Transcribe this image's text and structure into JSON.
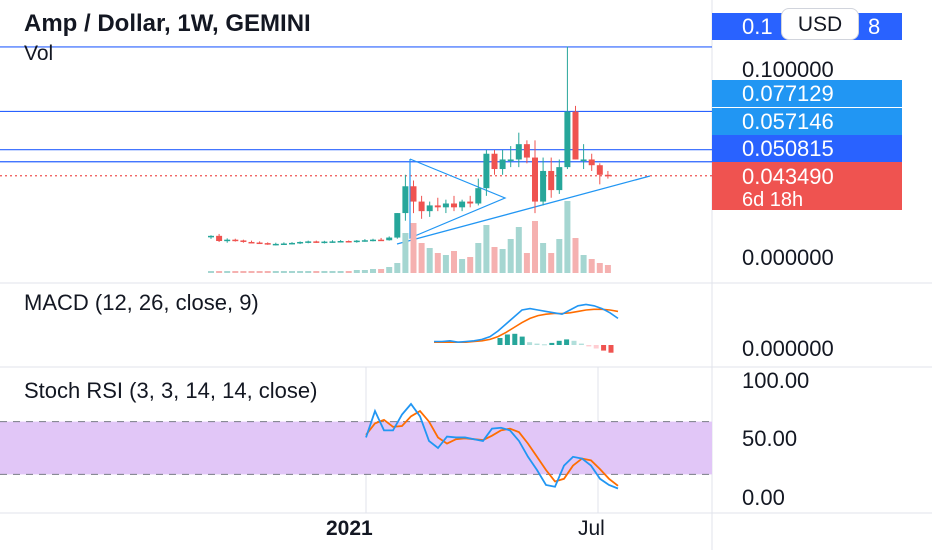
{
  "header": {
    "title": "Amp / Dollar, 1W, GEMINI",
    "vol_label": "Vol",
    "currency_button": "USD"
  },
  "price_scale": {
    "tag_top": "0.1",
    "tag_top_suffix": "8",
    "tick_1": "0.100000",
    "tag_2": "0.077129",
    "tag_3": "0.057146",
    "tag_4": "0.050815",
    "last_price": "0.043490",
    "countdown": "6d 18h",
    "zero": "0.000000"
  },
  "macd": {
    "label": "MACD (12, 26, close, 9)",
    "zero": "0.000000"
  },
  "stoch": {
    "label": "Stoch RSI (3, 3, 14, 14, close)",
    "tick_100": "100.00",
    "tick_50": "50.00",
    "tick_0": "0.00"
  },
  "time_axis": {
    "label_2021": "2021",
    "label_jul": "Jul"
  },
  "colors": {
    "up": "#26a69a",
    "down": "#ef5350",
    "blue_line": "#2962ff",
    "tag_blue": "#2196f3",
    "tag_dark_blue": "#2962ff",
    "macd_line": "#2196f3",
    "signal_line": "#ff6d00",
    "stoch_band": "#e1c6f7"
  },
  "chart_data": [
    {
      "type": "candlestick",
      "title": "Amp / Dollar, 1W, GEMINI",
      "candles": [
        [
          0.0116,
          0.0124,
          0.0105,
          0.0121
        ],
        [
          0.0121,
          0.0131,
          0.0089,
          0.0094
        ],
        [
          0.0094,
          0.0108,
          0.0085,
          0.0101
        ],
        [
          0.0101,
          0.0106,
          0.0091,
          0.0097
        ],
        [
          0.0097,
          0.0101,
          0.0085,
          0.0089
        ],
        [
          0.0089,
          0.0096,
          0.0083,
          0.0086
        ],
        [
          0.0086,
          0.0092,
          0.008,
          0.0083
        ],
        [
          0.0083,
          0.0087,
          0.0074,
          0.0077
        ],
        [
          0.0077,
          0.0085,
          0.0071,
          0.0079
        ],
        [
          0.0079,
          0.0087,
          0.0074,
          0.0081
        ],
        [
          0.0081,
          0.0088,
          0.0076,
          0.0084
        ],
        [
          0.0084,
          0.0092,
          0.0078,
          0.0089
        ],
        [
          0.0089,
          0.0096,
          0.0082,
          0.0092
        ],
        [
          0.0092,
          0.0096,
          0.0084,
          0.0087
        ],
        [
          0.0087,
          0.0095,
          0.0081,
          0.0091
        ],
        [
          0.0091,
          0.0098,
          0.0085,
          0.0092
        ],
        [
          0.0092,
          0.0099,
          0.0086,
          0.0094
        ],
        [
          0.0094,
          0.0097,
          0.0086,
          0.0089
        ],
        [
          0.0089,
          0.0099,
          0.0085,
          0.0096
        ],
        [
          0.0096,
          0.0104,
          0.009,
          0.0098
        ],
        [
          0.0098,
          0.0106,
          0.0092,
          0.0101
        ],
        [
          0.0101,
          0.011,
          0.0094,
          0.0098
        ],
        [
          0.0098,
          0.0118,
          0.0096,
          0.0112
        ],
        [
          0.0112,
          0.024,
          0.0106,
          0.024
        ],
        [
          0.024,
          0.044,
          0.02,
          0.038
        ],
        [
          0.038,
          0.041,
          0.024,
          0.03
        ],
        [
          0.03,
          0.033,
          0.021,
          0.025
        ],
        [
          0.025,
          0.03,
          0.022,
          0.028
        ],
        [
          0.028,
          0.032,
          0.025,
          0.027
        ],
        [
          0.027,
          0.031,
          0.024,
          0.029
        ],
        [
          0.029,
          0.033,
          0.025,
          0.027
        ],
        [
          0.027,
          0.031,
          0.025,
          0.03
        ],
        [
          0.03,
          0.033,
          0.027,
          0.029
        ],
        [
          0.029,
          0.042,
          0.028,
          0.037
        ],
        [
          0.037,
          0.057,
          0.033,
          0.055
        ],
        [
          0.055,
          0.057,
          0.044,
          0.047
        ],
        [
          0.047,
          0.057,
          0.044,
          0.052
        ],
        [
          0.052,
          0.059,
          0.048,
          0.052
        ],
        [
          0.052,
          0.066,
          0.048,
          0.06
        ],
        [
          0.06,
          0.062,
          0.05,
          0.053
        ],
        [
          0.053,
          0.062,
          0.024,
          0.03
        ],
        [
          0.03,
          0.053,
          0.028,
          0.046
        ],
        [
          0.046,
          0.053,
          0.032,
          0.036
        ],
        [
          0.036,
          0.052,
          0.034,
          0.048
        ],
        [
          0.048,
          0.111,
          0.047,
          0.077
        ],
        [
          0.077,
          0.08,
          0.052,
          0.052
        ],
        [
          0.052,
          0.06,
          0.047,
          0.052
        ],
        [
          0.052,
          0.055,
          0.046,
          0.049
        ],
        [
          0.049,
          0.05,
          0.039,
          0.044
        ],
        [
          0.044,
          0.046,
          0.042,
          0.0435
        ]
      ],
      "volume_direction": "color by candle direction",
      "price_lines": [
        0.1108,
        0.0771,
        0.0571,
        0.0508,
        0.0435
      ],
      "y_axis_ticks": [
        "0.000000",
        "0.100000"
      ]
    },
    {
      "type": "line",
      "label": "MACD (12, 26, close, 9)",
      "series": [
        {
          "name": "MACD",
          "values": [
            0.0005,
            0.0005,
            0.0006,
            0.0004,
            0.0005,
            0.0006,
            0.0008,
            0.0012,
            0.002,
            0.003,
            0.004,
            0.005,
            0.0052,
            0.005,
            0.0048,
            0.0046,
            0.0044,
            0.005,
            0.0056,
            0.0058,
            0.0056,
            0.0052,
            0.0046,
            0.0038
          ]
        },
        {
          "name": "Signal",
          "values": [
            0.0004,
            0.0004,
            0.0004,
            0.0004,
            0.0004,
            0.0005,
            0.0006,
            0.0008,
            0.0012,
            0.0018,
            0.0025,
            0.0032,
            0.0038,
            0.0042,
            0.0044,
            0.0045,
            0.0045,
            0.0046,
            0.0048,
            0.005,
            0.0051,
            0.0051,
            0.005,
            0.0048
          ]
        }
      ],
      "histogram": [
        0.001,
        0.0015,
        0.0016,
        0.0012,
        0.0004,
        0.0002,
        0.0001,
        0.0003,
        0.0006,
        0.0008,
        0.0006,
        0.0002,
        -0.0002,
        -0.0005,
        -0.0008,
        -0.0011
      ],
      "y_axis_ticks": [
        "0.000000"
      ]
    },
    {
      "type": "line",
      "label": "Stoch RSI (3, 3, 14, 14, close)",
      "ylim": [
        0,
        100
      ],
      "band": [
        20,
        80
      ],
      "series": [
        {
          "name": "K",
          "values": [
            62,
            92,
            70,
            70,
            88,
            100,
            86,
            58,
            50,
            63,
            62,
            62,
            60,
            58,
            72,
            73,
            70,
            58,
            40,
            25,
            8,
            6,
            30,
            40,
            38,
            30,
            15,
            8,
            4
          ]
        },
        {
          "name": "D",
          "values": [
            65,
            78,
            82,
            74,
            75,
            86,
            92,
            80,
            62,
            55,
            60,
            61,
            60,
            59,
            64,
            70,
            72,
            68,
            55,
            40,
            25,
            12,
            15,
            30,
            38,
            36,
            26,
            15,
            7
          ]
        }
      ],
      "y_axis_ticks": [
        "100.00",
        "50.00",
        "0.00"
      ]
    }
  ]
}
